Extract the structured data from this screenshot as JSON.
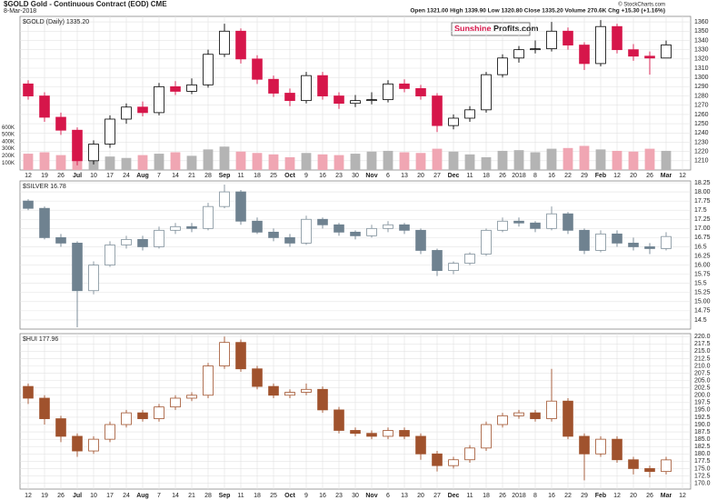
{
  "chart_data": [
    {
      "type": "candlestick",
      "title": "$GOLD Gold - Continuous Contract (EOD) CME",
      "date": "8-Mar-2018",
      "quote": "Open 1321.00  High 1339.90  Low 1320.80  Close 1335.20  Volume 270.6K  Chg +15.30 (+1.16%)",
      "credit": "© StockCharts.com",
      "label": "$GOLD (Daily) 1335.20",
      "logo": [
        "Sunshine",
        "Profits.com"
      ],
      "up_color": "#000000",
      "down_color": "#d6164a",
      "volume_up_color": "#b4b4b4",
      "volume_down_color": "#f0a6b3",
      "grid": true,
      "categories": [
        "12",
        "19",
        "26",
        "Jul",
        "10",
        "17",
        "24",
        "Aug",
        "7",
        "14",
        "21",
        "28",
        "Sep",
        "11",
        "18",
        "25",
        "Oct",
        "9",
        "16",
        "23",
        "30",
        "Nov",
        "6",
        "13",
        "20",
        "27",
        "Dec",
        "11",
        "18",
        "26",
        "2018",
        "8",
        "16",
        "22",
        "29",
        "Feb",
        "12",
        "20",
        "26",
        "Mar",
        "12"
      ],
      "open": [
        1293,
        1280,
        1257,
        1243,
        1210,
        1228,
        1255,
        1268,
        1262,
        1290,
        1285,
        1292,
        1325,
        1350,
        1320,
        1298,
        1283,
        1275,
        1302,
        1280,
        1272,
        1275,
        1276,
        1293,
        1288,
        1280,
        1248,
        1256,
        1265,
        1303,
        1321,
        1330,
        1331,
        1350,
        1335,
        1315,
        1355,
        1330,
        1323,
        1321,
        null
      ],
      "high": [
        1297,
        1284,
        1262,
        1246,
        1232,
        1259,
        1272,
        1274,
        1294,
        1296,
        1299,
        1330,
        1358,
        1353,
        1324,
        1302,
        1288,
        1306,
        1306,
        1284,
        1281,
        1284,
        1297,
        1298,
        1292,
        1283,
        1260,
        1269,
        1306,
        1325,
        1334,
        1340,
        1360,
        1354,
        1338,
        1362,
        1358,
        1336,
        1328,
        1339.9,
        null
      ],
      "low": [
        1276,
        1252,
        1238,
        1205,
        1206,
        1224,
        1250,
        1258,
        1259,
        1281,
        1282,
        1289,
        1322,
        1315,
        1293,
        1279,
        1269,
        1272,
        1276,
        1266,
        1268,
        1271,
        1273,
        1284,
        1276,
        1241,
        1244,
        1252,
        1262,
        1300,
        1316,
        1326,
        1328,
        1330,
        1308,
        1312,
        1326,
        1318,
        1303,
        1320.8,
        null
      ],
      "close": [
        1280,
        1257,
        1243,
        1210,
        1228,
        1255,
        1268,
        1262,
        1290,
        1285,
        1292,
        1325,
        1350,
        1320,
        1298,
        1283,
        1275,
        1302,
        1280,
        1272,
        1275,
        1276,
        1293,
        1288,
        1280,
        1248,
        1256,
        1265,
        1303,
        1321,
        1330,
        1331,
        1350,
        1335,
        1315,
        1355,
        1330,
        1323,
        1321,
        1335.2,
        null
      ],
      "volume": [
        230000,
        250000,
        210000,
        280000,
        200000,
        190000,
        170000,
        210000,
        230000,
        250000,
        200000,
        290000,
        330000,
        260000,
        240000,
        220000,
        180000,
        240000,
        220000,
        210000,
        230000,
        260000,
        270000,
        250000,
        240000,
        300000,
        260000,
        220000,
        180000,
        270000,
        280000,
        250000,
        300000,
        310000,
        340000,
        290000,
        270000,
        260000,
        300000,
        270000,
        null
      ],
      "ylim": [
        1200,
        1366
      ],
      "yticks": [
        1210,
        1220,
        1230,
        1240,
        1250,
        1260,
        1270,
        1280,
        1290,
        1300,
        1310,
        1320,
        1330,
        1340,
        1350,
        1360
      ],
      "volume_lim": [
        0,
        650000
      ],
      "volume_ticks": [
        {
          "value": 100000,
          "label": "100K"
        },
        {
          "value": 200000,
          "label": "200K"
        },
        {
          "value": 300000,
          "label": "300K"
        },
        {
          "value": 400000,
          "label": "400K"
        },
        {
          "value": 500000,
          "label": "500K"
        },
        {
          "value": 600000,
          "label": "600K"
        }
      ]
    },
    {
      "type": "candlestick",
      "label": "$SILVER 16.78",
      "up_color": "#7f8f9a",
      "down_color": "#6f8290",
      "grid": true,
      "open": [
        17.75,
        17.55,
        16.75,
        16.6,
        15.3,
        16.0,
        16.55,
        16.7,
        16.5,
        16.95,
        17.05,
        17.0,
        17.6,
        18.0,
        17.2,
        16.9,
        16.75,
        16.6,
        17.25,
        17.1,
        16.9,
        16.8,
        17.0,
        17.1,
        16.95,
        16.4,
        15.85,
        16.05,
        16.3,
        16.95,
        17.2,
        17.15,
        17.0,
        17.4,
        16.95,
        16.4,
        16.85,
        16.6,
        16.5,
        16.45,
        null
      ],
      "high": [
        17.8,
        17.6,
        16.85,
        16.65,
        16.1,
        16.65,
        16.8,
        16.8,
        17.05,
        17.15,
        17.15,
        17.7,
        18.2,
        18.05,
        17.3,
        17.0,
        16.85,
        17.35,
        17.3,
        17.15,
        16.95,
        17.1,
        17.2,
        17.15,
        17.0,
        16.45,
        16.1,
        16.35,
        17.0,
        17.3,
        17.3,
        17.2,
        17.6,
        17.45,
        17.0,
        16.95,
        16.95,
        16.75,
        16.6,
        16.9,
        null
      ],
      "low": [
        17.5,
        16.7,
        16.5,
        14.3,
        15.2,
        15.95,
        16.45,
        16.4,
        16.45,
        16.85,
        16.9,
        16.95,
        17.55,
        17.1,
        16.85,
        16.65,
        16.5,
        16.55,
        17.0,
        16.8,
        16.7,
        16.75,
        16.9,
        16.85,
        16.3,
        15.7,
        15.75,
        16.0,
        16.25,
        16.9,
        17.05,
        16.9,
        16.95,
        16.85,
        16.3,
        16.35,
        16.5,
        16.4,
        16.3,
        16.4,
        null
      ],
      "close": [
        17.55,
        16.75,
        16.6,
        15.3,
        16.0,
        16.55,
        16.7,
        16.5,
        16.95,
        17.05,
        17.0,
        17.6,
        18.0,
        17.2,
        16.9,
        16.75,
        16.6,
        17.25,
        17.1,
        16.9,
        16.8,
        17.0,
        17.1,
        16.95,
        16.4,
        15.85,
        16.05,
        16.3,
        16.95,
        17.2,
        17.15,
        17.0,
        17.4,
        16.95,
        16.4,
        16.85,
        16.6,
        16.5,
        16.45,
        16.78,
        null
      ],
      "ylim": [
        14.25,
        18.3
      ],
      "yticks": [
        14.5,
        14.75,
        {
          "value": 15,
          "label": "15.00"
        },
        15.25,
        15.5,
        15.75,
        {
          "value": 16,
          "label": "16.00"
        },
        16.25,
        16.5,
        16.75,
        {
          "value": 17,
          "label": "17.00"
        },
        17.25,
        17.5,
        17.75,
        {
          "value": 18,
          "label": "18.00"
        },
        18.25
      ]
    },
    {
      "type": "candlestick",
      "label": "$HUI 177.96",
      "up_color": "#a0522d",
      "down_color": "#a0522d",
      "grid": true,
      "categories": [
        "12",
        "19",
        "26",
        "Jul",
        "10",
        "17",
        "24",
        "Aug",
        "7",
        "14",
        "21",
        "28",
        "Sep",
        "11",
        "18",
        "25",
        "Oct",
        "9",
        "16",
        "23",
        "30",
        "Nov",
        "6",
        "13",
        "20",
        "27",
        "Dec",
        "11",
        "18",
        "26",
        "2018",
        "8",
        "16",
        "22",
        "29",
        "Feb",
        "12",
        "20",
        "26",
        "Mar",
        "12"
      ],
      "open": [
        203,
        199,
        192,
        186,
        181,
        185,
        190,
        194,
        192,
        196,
        199,
        200,
        210,
        218,
        209,
        203,
        200,
        201,
        202,
        195,
        188,
        187,
        186,
        188,
        186,
        180,
        176,
        178,
        182,
        190,
        193,
        194,
        192,
        198,
        186,
        180,
        185,
        178,
        175,
        174,
        null
      ],
      "high": [
        204,
        200,
        193,
        187,
        186,
        191,
        195,
        195,
        197,
        200,
        201,
        211,
        220,
        219,
        210,
        204,
        202,
        204,
        203,
        196,
        189,
        188,
        189,
        189,
        187,
        181,
        179,
        183,
        191,
        194,
        195,
        195,
        209,
        199,
        187,
        186,
        186,
        179,
        176,
        179,
        null
      ],
      "low": [
        197,
        190,
        184,
        179,
        180,
        184,
        189,
        191,
        191,
        195,
        198,
        199,
        209,
        208,
        202,
        199,
        199,
        200,
        194,
        187,
        186,
        185,
        185,
        185,
        178,
        174,
        175,
        177,
        181,
        189,
        192,
        191,
        191,
        185,
        171,
        179,
        177,
        173,
        172,
        173,
        null
      ],
      "close": [
        199,
        192,
        186,
        181,
        185,
        190,
        194,
        192,
        196,
        199,
        200,
        210,
        218,
        209,
        203,
        200,
        201,
        202,
        195,
        188,
        187,
        186,
        188,
        186,
        180,
        176,
        178,
        182,
        190,
        193,
        194,
        192,
        198,
        186,
        180,
        185,
        178,
        175,
        174,
        177.96,
        null
      ],
      "ylim": [
        168,
        221
      ],
      "yticks": [
        {
          "value": 170,
          "label": "170.0"
        },
        172.5,
        {
          "value": 175,
          "label": "175.0"
        },
        177.5,
        {
          "value": 180,
          "label": "180.0"
        },
        182.5,
        {
          "value": 185,
          "label": "185.0"
        },
        187.5,
        {
          "value": 190,
          "label": "190.0"
        },
        192.5,
        {
          "value": 195,
          "label": "195.0"
        },
        197.5,
        {
          "value": 200,
          "label": "200.0"
        },
        202.5,
        {
          "value": 205,
          "label": "205.0"
        },
        207.5,
        {
          "value": 210,
          "label": "210.0"
        },
        212.5,
        {
          "value": 215,
          "label": "215.0"
        },
        217.5,
        {
          "value": 220,
          "label": "220.0"
        }
      ]
    }
  ]
}
